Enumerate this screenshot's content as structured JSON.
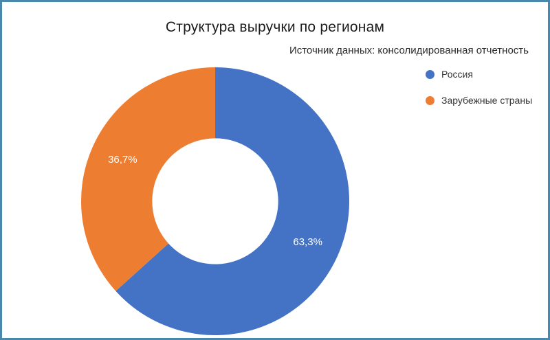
{
  "frame": {
    "border_color": "#4a87ad",
    "background": "#ffffff"
  },
  "chart_data": {
    "type": "pie",
    "title": "Структура выручки по регионам",
    "subtitle": "Источник данных: консолидированная отчетность",
    "labels": [
      "Россия",
      "Зарубежные страны"
    ],
    "values": [
      63.3,
      36.7
    ],
    "value_labels": [
      "63,3%",
      "36,7%"
    ],
    "colors": [
      "#4472C4",
      "#ED7D31"
    ],
    "donut_hole_ratio": 0.47,
    "start_angle_deg": -90,
    "direction": "clockwise",
    "legend_position": "top-right",
    "label_color": "#ffffff",
    "title_color": "#1c1c1c"
  }
}
